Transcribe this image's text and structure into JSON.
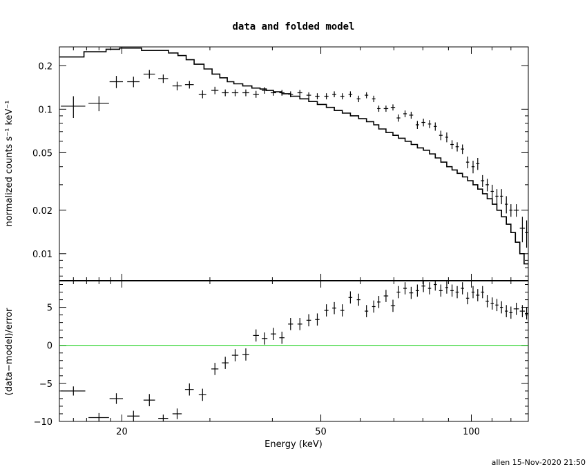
{
  "chart_data": [
    {
      "type": "line",
      "title": "data and folded model",
      "ylabel": "normalized counts s⁻¹ keV⁻¹",
      "xscale": "log",
      "yscale": "log",
      "xlim": [
        15,
        130
      ],
      "ylim": [
        0.0065,
        0.27
      ],
      "yticks": [
        {
          "v": 0.01,
          "label": "0.01"
        },
        {
          "v": 0.02,
          "label": "0.02"
        },
        {
          "v": 0.05,
          "label": "0.05"
        },
        {
          "v": 0.1,
          "label": "0.1"
        },
        {
          "v": 0.2,
          "label": "0.2"
        }
      ],
      "data_points": [
        [
          16.0,
          0.105,
          0.9,
          0.018
        ],
        [
          18.0,
          0.11,
          0.85,
          0.013
        ],
        [
          19.5,
          0.155,
          0.6,
          0.015
        ],
        [
          21.1,
          0.155,
          0.6,
          0.013
        ],
        [
          22.7,
          0.175,
          0.6,
          0.012
        ],
        [
          24.2,
          0.163,
          0.55,
          0.011
        ],
        [
          25.8,
          0.145,
          0.55,
          0.01
        ],
        [
          27.3,
          0.148,
          0.55,
          0.009
        ],
        [
          29.0,
          0.127,
          0.5,
          0.008
        ],
        [
          30.7,
          0.135,
          0.5,
          0.008
        ],
        [
          32.2,
          0.13,
          0.5,
          0.007
        ],
        [
          33.7,
          0.13,
          0.5,
          0.007
        ],
        [
          35.4,
          0.13,
          0.55,
          0.007
        ],
        [
          37.1,
          0.127,
          0.5,
          0.007
        ],
        [
          38.6,
          0.135,
          0.5,
          0.007
        ],
        [
          40.2,
          0.13,
          0.5,
          0.006
        ],
        [
          41.8,
          0.13,
          0.5,
          0.006
        ],
        [
          43.5,
          0.127,
          0.5,
          0.006
        ],
        [
          45.4,
          0.13,
          0.5,
          0.006
        ],
        [
          47.3,
          0.125,
          0.5,
          0.006
        ],
        [
          49.2,
          0.123,
          0.5,
          0.006
        ],
        [
          51.3,
          0.123,
          0.5,
          0.006
        ],
        [
          53.2,
          0.127,
          0.5,
          0.006
        ],
        [
          55.2,
          0.123,
          0.5,
          0.006
        ],
        [
          57.3,
          0.127,
          0.5,
          0.006
        ],
        [
          59.5,
          0.118,
          0.5,
          0.006
        ],
        [
          61.7,
          0.125,
          0.5,
          0.006
        ],
        [
          63.8,
          0.118,
          0.5,
          0.006
        ],
        [
          65.3,
          0.101,
          0.5,
          0.005
        ],
        [
          67.5,
          0.101,
          0.7,
          0.005
        ],
        [
          69.7,
          0.103,
          0.7,
          0.005
        ],
        [
          71.5,
          0.087,
          0.6,
          0.005
        ],
        [
          73.7,
          0.093,
          0.6,
          0.005
        ],
        [
          75.8,
          0.091,
          0.7,
          0.005
        ],
        [
          78.0,
          0.078,
          0.6,
          0.005
        ],
        [
          80.2,
          0.081,
          0.7,
          0.005
        ],
        [
          82.5,
          0.079,
          0.6,
          0.005
        ],
        [
          84.7,
          0.076,
          0.6,
          0.005
        ],
        [
          86.9,
          0.066,
          0.7,
          0.005
        ],
        [
          89.3,
          0.064,
          0.6,
          0.005
        ],
        [
          91.5,
          0.057,
          0.7,
          0.004
        ],
        [
          93.7,
          0.055,
          0.7,
          0.004
        ],
        [
          96.0,
          0.053,
          0.7,
          0.004
        ],
        [
          98.3,
          0.043,
          0.7,
          0.004
        ],
        [
          100.8,
          0.04,
          0.7,
          0.004
        ],
        [
          103.0,
          0.042,
          0.8,
          0.004
        ],
        [
          105.3,
          0.032,
          0.8,
          0.003
        ],
        [
          107.6,
          0.03,
          0.8,
          0.003
        ],
        [
          110.1,
          0.027,
          0.8,
          0.003
        ],
        [
          112.5,
          0.025,
          0.8,
          0.003
        ],
        [
          114.9,
          0.025,
          0.8,
          0.003
        ],
        [
          117.5,
          0.022,
          0.8,
          0.003
        ],
        [
          120.0,
          0.02,
          0.9,
          0.002
        ],
        [
          123.0,
          0.02,
          1.5,
          0.002
        ],
        [
          126.5,
          0.015,
          1.5,
          0.003
        ],
        [
          129.0,
          0.014,
          1.0,
          0.003
        ]
      ],
      "model_steps": [
        [
          15.0,
          0.23
        ],
        [
          16.8,
          0.25
        ],
        [
          18.6,
          0.26
        ],
        [
          19.8,
          0.265
        ],
        [
          21.9,
          0.255
        ],
        [
          24.8,
          0.245
        ],
        [
          25.9,
          0.235
        ],
        [
          26.9,
          0.22
        ],
        [
          27.9,
          0.205
        ],
        [
          29.2,
          0.19
        ],
        [
          30.3,
          0.175
        ],
        [
          31.4,
          0.165
        ],
        [
          32.5,
          0.155
        ],
        [
          33.5,
          0.15
        ],
        [
          34.9,
          0.145
        ],
        [
          36.4,
          0.14
        ],
        [
          37.8,
          0.138
        ],
        [
          38.9,
          0.135
        ],
        [
          40.2,
          0.132
        ],
        [
          41.8,
          0.128
        ],
        [
          43.5,
          0.123
        ],
        [
          45.4,
          0.118
        ],
        [
          47.3,
          0.113
        ],
        [
          49.2,
          0.108
        ],
        [
          51.3,
          0.103
        ],
        [
          53.2,
          0.098
        ],
        [
          55.2,
          0.094
        ],
        [
          57.3,
          0.09
        ],
        [
          59.5,
          0.086
        ],
        [
          61.7,
          0.082
        ],
        [
          63.8,
          0.078
        ],
        [
          65.3,
          0.073
        ],
        [
          67.5,
          0.069
        ],
        [
          69.7,
          0.066
        ],
        [
          71.5,
          0.063
        ],
        [
          73.7,
          0.06
        ],
        [
          75.8,
          0.057
        ],
        [
          78.0,
          0.054
        ],
        [
          80.2,
          0.052
        ],
        [
          82.5,
          0.049
        ],
        [
          84.7,
          0.046
        ],
        [
          86.9,
          0.043
        ],
        [
          89.3,
          0.04
        ],
        [
          91.5,
          0.038
        ],
        [
          93.7,
          0.036
        ],
        [
          96.0,
          0.034
        ],
        [
          98.3,
          0.032
        ],
        [
          100.8,
          0.03
        ],
        [
          103.0,
          0.028
        ],
        [
          105.3,
          0.026
        ],
        [
          107.6,
          0.024
        ],
        [
          110.1,
          0.022
        ],
        [
          112.5,
          0.02
        ],
        [
          114.9,
          0.018
        ],
        [
          117.5,
          0.016
        ],
        [
          120.0,
          0.014
        ],
        [
          122.5,
          0.012
        ],
        [
          125.0,
          0.01
        ],
        [
          127.5,
          0.0085
        ],
        [
          130.0,
          0.0075
        ]
      ]
    },
    {
      "type": "scatter",
      "xlabel": "Energy (keV)",
      "ylabel": "(data−model)/error",
      "xscale": "log",
      "xlim": [
        15,
        130
      ],
      "ylim": [
        -10,
        8.5
      ],
      "xticks": [
        {
          "v": 20,
          "label": "20"
        },
        {
          "v": 50,
          "label": "50"
        },
        {
          "v": 100,
          "label": "100"
        }
      ],
      "yticks": [
        {
          "v": -10,
          "label": "−10"
        },
        {
          "v": -5,
          "label": "−5"
        },
        {
          "v": 0,
          "label": "0"
        },
        {
          "v": 5,
          "label": "5"
        }
      ],
      "zero_line_color": "#00cc00",
      "residuals": [
        [
          16.0,
          -6.0,
          0.9,
          0.6
        ],
        [
          18.0,
          -9.5,
          0.85,
          0.6
        ],
        [
          19.5,
          -7.0,
          0.6,
          0.7
        ],
        [
          21.1,
          -9.3,
          0.6,
          0.7
        ],
        [
          22.7,
          -7.2,
          0.6,
          0.8
        ],
        [
          24.2,
          -9.6,
          0.55,
          0.5
        ],
        [
          25.8,
          -9.0,
          0.55,
          0.7
        ],
        [
          27.3,
          -5.8,
          0.55,
          0.8
        ],
        [
          29.0,
          -6.5,
          0.5,
          0.8
        ],
        [
          30.7,
          -3.1,
          0.5,
          0.8
        ],
        [
          32.2,
          -2.3,
          0.5,
          0.8
        ],
        [
          33.7,
          -1.3,
          0.5,
          0.8
        ],
        [
          35.4,
          -1.2,
          0.55,
          0.8
        ],
        [
          37.1,
          1.3,
          0.5,
          0.8
        ],
        [
          38.6,
          0.9,
          0.5,
          0.8
        ],
        [
          40.2,
          1.5,
          0.5,
          0.8
        ],
        [
          41.8,
          1.0,
          0.5,
          0.8
        ],
        [
          43.5,
          2.8,
          0.5,
          0.8
        ],
        [
          45.4,
          2.8,
          0.5,
          0.8
        ],
        [
          47.3,
          3.3,
          0.5,
          0.8
        ],
        [
          49.2,
          3.4,
          0.5,
          0.8
        ],
        [
          51.3,
          4.6,
          0.5,
          0.8
        ],
        [
          53.2,
          4.9,
          0.5,
          0.8
        ],
        [
          55.2,
          4.6,
          0.5,
          0.8
        ],
        [
          57.3,
          6.3,
          0.5,
          0.8
        ],
        [
          59.5,
          6.0,
          0.5,
          0.8
        ],
        [
          61.7,
          4.5,
          0.5,
          0.8
        ],
        [
          63.8,
          5.1,
          0.5,
          0.8
        ],
        [
          65.3,
          5.7,
          0.5,
          0.8
        ],
        [
          67.5,
          6.5,
          0.7,
          0.8
        ],
        [
          69.7,
          5.2,
          0.7,
          0.8
        ],
        [
          71.5,
          7.0,
          0.6,
          0.8
        ],
        [
          73.7,
          7.5,
          0.6,
          0.8
        ],
        [
          75.8,
          6.9,
          0.7,
          0.8
        ],
        [
          78.0,
          7.2,
          0.6,
          0.8
        ],
        [
          80.2,
          7.8,
          0.7,
          0.8
        ],
        [
          82.5,
          7.5,
          0.6,
          0.8
        ],
        [
          84.7,
          8.0,
          0.6,
          0.8
        ],
        [
          86.9,
          7.2,
          0.7,
          0.8
        ],
        [
          89.3,
          7.6,
          0.6,
          0.8
        ],
        [
          91.5,
          7.2,
          0.7,
          0.8
        ],
        [
          93.7,
          7.0,
          0.7,
          0.8
        ],
        [
          96.0,
          7.5,
          0.7,
          0.8
        ],
        [
          98.3,
          6.2,
          0.7,
          0.8
        ],
        [
          100.8,
          7.0,
          0.7,
          0.8
        ],
        [
          103.0,
          6.6,
          0.8,
          0.8
        ],
        [
          105.3,
          7.0,
          0.8,
          0.8
        ],
        [
          107.6,
          5.8,
          0.8,
          0.8
        ],
        [
          110.1,
          5.5,
          0.8,
          0.8
        ],
        [
          112.5,
          5.3,
          0.8,
          0.8
        ],
        [
          114.9,
          5.0,
          0.8,
          0.8
        ],
        [
          117.5,
          4.5,
          0.8,
          0.8
        ],
        [
          120.0,
          4.3,
          0.9,
          0.8
        ],
        [
          123.0,
          4.8,
          1.5,
          0.8
        ],
        [
          126.5,
          4.5,
          1.5,
          0.8
        ],
        [
          129.0,
          4.2,
          1.0,
          0.8
        ]
      ]
    }
  ],
  "footer": "allen 15-Nov-2020 21:50"
}
